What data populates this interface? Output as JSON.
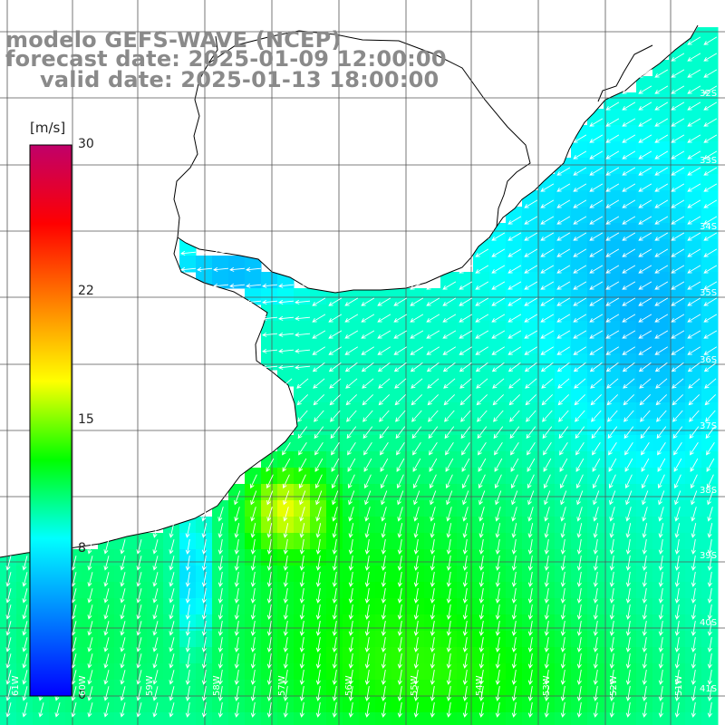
{
  "header": {
    "model": "modelo GEFS-WAVE (NCEP)",
    "forecast": "forecast date: 2025-01-09 12:00:00",
    "valid": "valid date: 2025-01-13 18:00:00"
  },
  "colorbar": {
    "unit": "[m/s]",
    "ticks": [
      {
        "label": "30",
        "value": 30
      },
      {
        "label": "22",
        "value": 22
      },
      {
        "label": "15",
        "value": 15
      },
      {
        "label": "8",
        "value": 8
      },
      {
        "label": "0",
        "value": 0
      }
    ],
    "colors": [
      "#0000ff",
      "#0080ff",
      "#00ffff",
      "#00ff00",
      "#ffff00",
      "#ff8000",
      "#ff0000",
      "#c0006a"
    ]
  },
  "lat_labels": [
    "32S",
    "33S",
    "34S",
    "35S",
    "36S",
    "37S",
    "38S",
    "39S",
    "40S",
    "41S"
  ],
  "lon_labels": [
    "61W",
    "60W",
    "59W",
    "58W",
    "57W",
    "56W",
    "55W",
    "54W",
    "53W",
    "52W",
    "51W"
  ],
  "icons": {
    "wind-vector": "arrow",
    "coastline": "line"
  }
}
